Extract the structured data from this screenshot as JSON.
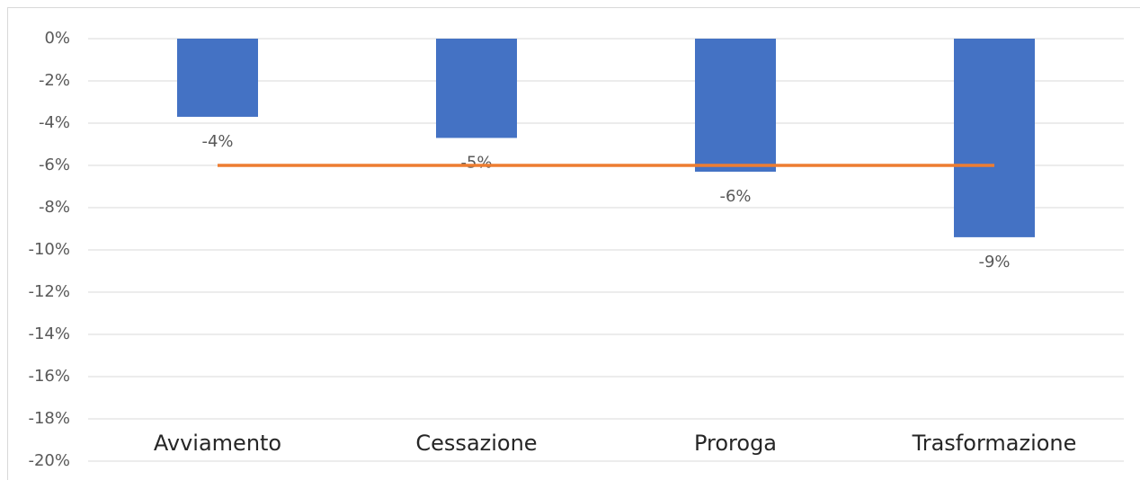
{
  "chart_data": {
    "type": "bar",
    "categories": [
      "Avviamento",
      "Cessazione",
      "Proroga",
      "Trasformazione"
    ],
    "series": [
      {
        "type": "bar",
        "color": "#4472c4",
        "values": [
          -3.7,
          -4.7,
          -6.3,
          -9.4
        ],
        "value_labels": [
          "-4%",
          "-5%",
          "-6%",
          "-9%"
        ]
      },
      {
        "type": "line",
        "color": "#ed7d31",
        "values": [
          -6,
          -6,
          -6,
          -6
        ]
      }
    ],
    "ylim": [
      -20,
      0
    ],
    "yticks": [
      {
        "value": 0,
        "label": "0%"
      },
      {
        "value": -2,
        "label": "-2%"
      },
      {
        "value": -4,
        "label": "-4%"
      },
      {
        "value": -6,
        "label": "-6%"
      },
      {
        "value": -8,
        "label": "-8%"
      },
      {
        "value": -10,
        "label": "-10%"
      },
      {
        "value": -12,
        "label": "-12%"
      },
      {
        "value": -14,
        "label": "-14%"
      },
      {
        "value": -16,
        "label": "-16%"
      },
      {
        "value": -18,
        "label": "-18%"
      },
      {
        "value": -20,
        "label": "-20%"
      }
    ],
    "grid": true
  }
}
